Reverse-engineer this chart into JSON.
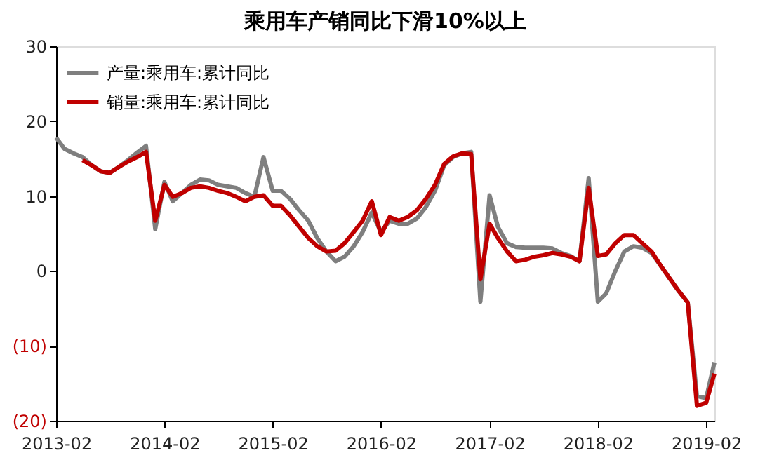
{
  "chart_data": {
    "type": "line",
    "title": "乘用车产销同比下滑10%以上",
    "x": [
      "2013-02",
      "2013-03",
      "2013-04",
      "2013-05",
      "2013-06",
      "2013-07",
      "2013-08",
      "2013-09",
      "2013-10",
      "2013-11",
      "2013-12",
      "2014-01",
      "2014-02",
      "2014-03",
      "2014-04",
      "2014-05",
      "2014-06",
      "2014-07",
      "2014-08",
      "2014-09",
      "2014-10",
      "2014-11",
      "2014-12",
      "2015-01",
      "2015-02",
      "2015-03",
      "2015-04",
      "2015-05",
      "2015-06",
      "2015-07",
      "2015-08",
      "2015-09",
      "2015-10",
      "2015-11",
      "2015-12",
      "2016-01",
      "2016-02",
      "2016-03",
      "2016-04",
      "2016-05",
      "2016-06",
      "2016-07",
      "2016-08",
      "2016-09",
      "2016-10",
      "2016-11",
      "2016-12",
      "2017-01",
      "2017-02",
      "2017-03",
      "2017-04",
      "2017-05",
      "2017-06",
      "2017-07",
      "2017-08",
      "2017-09",
      "2017-10",
      "2017-11",
      "2017-12",
      "2018-01",
      "2018-02",
      "2018-03",
      "2018-04",
      "2018-05",
      "2018-06",
      "2018-07",
      "2018-08",
      "2018-09",
      "2018-10",
      "2018-11",
      "2018-12",
      "2019-01",
      "2019-02",
      "2019-03"
    ],
    "series": [
      {
        "name": "产量:乘用车:累计同比",
        "color": "#7f7f7f",
        "values": [
          17.8,
          16.3,
          15.7,
          15.2,
          14.1,
          13.3,
          13.1,
          13.9,
          14.8,
          15.8,
          16.7,
          5.6,
          11.9,
          9.3,
          10.4,
          11.5,
          12.2,
          12.1,
          11.5,
          11.3,
          11.1,
          10.4,
          9.9,
          15.2,
          10.7,
          10.7,
          9.6,
          8.1,
          6.7,
          4.4,
          2.6,
          1.3,
          1.9,
          3.3,
          5.2,
          7.8,
          5.2,
          6.7,
          6.3,
          6.3,
          7.0,
          8.5,
          10.7,
          14.1,
          15.2,
          15.7,
          15.9,
          -4.1,
          10.1,
          5.9,
          3.7,
          3.2,
          3.1,
          3.1,
          3.1,
          3.0,
          2.4,
          2.0,
          1.3,
          12.4,
          -4.1,
          -3.0,
          0,
          2.6,
          3.3,
          3.1,
          2.4,
          0.7,
          -1.0,
          -2.7,
          -4.2,
          -16.7,
          -17.0,
          -12.2
        ]
      },
      {
        "name": "销量:乘用车:累计同比",
        "color": "#c00000",
        "values": [
          null,
          null,
          null,
          14.8,
          14.1,
          13.3,
          13.1,
          13.9,
          14.6,
          15.2,
          15.9,
          6.7,
          11.5,
          9.9,
          10.4,
          11.1,
          11.3,
          11.1,
          10.7,
          10.4,
          9.9,
          9.3,
          9.9,
          10.1,
          8.7,
          8.7,
          7.4,
          5.9,
          4.4,
          3.3,
          2.6,
          2.7,
          3.7,
          5.2,
          6.7,
          9.3,
          4.8,
          7.2,
          6.7,
          7.2,
          8.1,
          9.6,
          11.5,
          14.3,
          15.3,
          15.7,
          15.6,
          -1.1,
          6.3,
          4.4,
          2.6,
          1.3,
          1.5,
          1.9,
          2.1,
          2.4,
          2.2,
          1.9,
          1.3,
          11.1,
          2.0,
          2.2,
          3.7,
          4.8,
          4.8,
          3.7,
          2.6,
          0.7,
          -1.0,
          -2.7,
          -4.2,
          -18.0,
          -17.6,
          -13.7
        ]
      }
    ],
    "xlim": [
      "2013-02",
      "2019-03"
    ],
    "xticks": [
      {
        "value": "2013-02",
        "label": "2013-02"
      },
      {
        "value": "2014-02",
        "label": "2014-02"
      },
      {
        "value": "2015-02",
        "label": "2015-02"
      },
      {
        "value": "2016-02",
        "label": "2016-02"
      },
      {
        "value": "2017-02",
        "label": "2017-02"
      },
      {
        "value": "2018-02",
        "label": "2018-02"
      },
      {
        "value": "2019-02",
        "label": "2019-02"
      }
    ],
    "ylim": [
      -20,
      30
    ],
    "yticks": [
      30,
      20,
      10,
      0,
      {
        "value": -10,
        "label": "(10)"
      },
      {
        "value": -20,
        "label": "(20)"
      }
    ],
    "legend": "top left",
    "grid": false,
    "line_style": "solid",
    "marker": "none"
  }
}
